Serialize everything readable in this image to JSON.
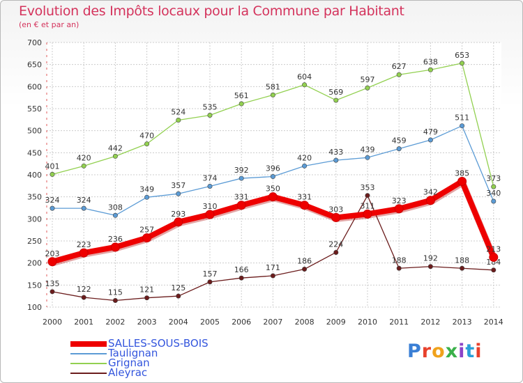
{
  "title": "Evolution des Impôts locaux pour la Commune par Habitant",
  "subtitle": "(en € et par an)",
  "logo_text": "Proxiti",
  "colors": {
    "salles": "#ee0000",
    "taulignan": "#5b9bd5",
    "grignan": "#92d050",
    "aleyrac": "#6b1c1c",
    "title": "#d4335c",
    "grid": "#cccccc",
    "legend_text": "#3355dd"
  },
  "chart_data": {
    "type": "line",
    "title": "Evolution des Impôts locaux pour la Commune par Habitant",
    "subtitle": "(en € et par an)",
    "xlabel": "",
    "ylabel": "",
    "x": [
      "2000",
      "2001",
      "2002",
      "2003",
      "2004",
      "2005",
      "2006",
      "2007",
      "2008",
      "2009",
      "2010",
      "2011",
      "2012",
      "2013",
      "2014"
    ],
    "ylim": [
      100,
      700
    ],
    "yticks": [
      100,
      150,
      200,
      250,
      300,
      350,
      400,
      450,
      500,
      550,
      600,
      650,
      700
    ],
    "grid": true,
    "legend_position": "bottom-left",
    "series": [
      {
        "name": "SALLES-SOUS-BOIS",
        "color": "#ee0000",
        "values": [
          203,
          223,
          236,
          257,
          293,
          310,
          331,
          350,
          331,
          303,
          311,
          323,
          342,
          385,
          213
        ]
      },
      {
        "name": "Taulignan",
        "color": "#5b9bd5",
        "values": [
          324,
          324,
          308,
          349,
          357,
          374,
          392,
          396,
          420,
          433,
          439,
          459,
          479,
          511,
          340
        ]
      },
      {
        "name": "Grignan",
        "color": "#92d050",
        "values": [
          401,
          420,
          442,
          470,
          524,
          535,
          561,
          581,
          604,
          569,
          597,
          627,
          638,
          653,
          373
        ]
      },
      {
        "name": "Aleyrac",
        "color": "#6b1c1c",
        "values": [
          135,
          122,
          115,
          121,
          125,
          157,
          166,
          171,
          186,
          224,
          353,
          188,
          192,
          188,
          184
        ]
      }
    ]
  }
}
